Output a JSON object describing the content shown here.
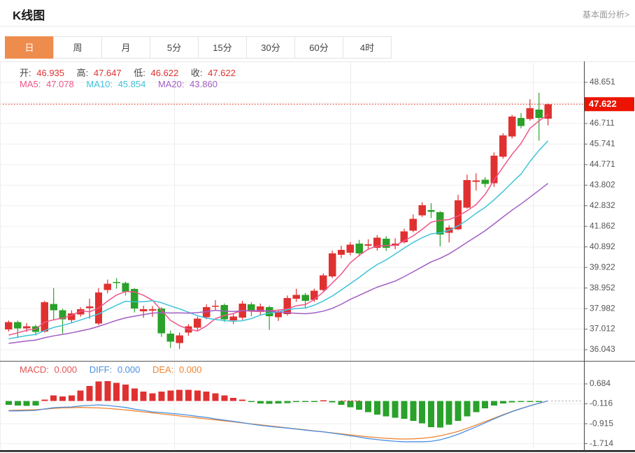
{
  "header": {
    "title": "K线图",
    "link": "基本面分析>"
  },
  "tabs": {
    "items": [
      "日",
      "周",
      "月",
      "5分",
      "15分",
      "30分",
      "60分",
      "4时"
    ],
    "active": "日"
  },
  "ohlc": {
    "open_label": "开:",
    "open": "46.935",
    "high_label": "高:",
    "high": "47.647",
    "low_label": "低:",
    "low": "46.622",
    "close_label": "收:",
    "close": "47.622"
  },
  "ma_readout": {
    "ma5_label": "MA5:",
    "ma5": "47.078",
    "ma10_label": "MA10:",
    "ma10": "45.854",
    "ma20_label": "MA20:",
    "ma20": "43.860"
  },
  "macd_readout": {
    "macd_label": "MACD:",
    "macd": "0.000",
    "diff_label": "DIFF:",
    "diff": "0.000",
    "dea_label": "DEA:",
    "dea": "0.000"
  },
  "colors": {
    "up_red": "#e03131",
    "down_green": "#2aa12a",
    "ma5_pink": "#f0548a",
    "ma10_cyan": "#3fc3da",
    "ma20_purple": "#a25ec4",
    "diff_blue": "#4a90e2",
    "dea_orange": "#ef8430",
    "macd_red_label": "#e05555",
    "accent_orange": "#ee8c4e",
    "badge_red": "#ec1400",
    "grid": "#efefef",
    "axis": "#444444",
    "axis_text": "#555555"
  },
  "chart_data": {
    "type": "candlestick_with_macd",
    "title": "K线图 (daily K-line with MA5/MA10/MA20 and MACD)",
    "legend_position": "top-left overlay",
    "grid": "on",
    "price_axis": {
      "range": [
        36.043,
        48.651
      ],
      "tick_labels": [
        "48.651",
        "46.711",
        "45.741",
        "44.771",
        "43.802",
        "42.832",
        "41.862",
        "40.892",
        "39.922",
        "38.952",
        "37.982",
        "37.012",
        "36.043"
      ],
      "grid_divisions": 13,
      "current_price": 47.622,
      "current_price_label": "47.622"
    },
    "macd_axis": {
      "range": [
        -1.714,
        0.684
      ],
      "tick_labels": [
        "0.684",
        "-0.116",
        "-0.915",
        "-1.714"
      ]
    },
    "vertical_gridlines_x": [
      249,
      501,
      762
    ],
    "ma_periods": [
      5,
      10,
      20
    ],
    "ma_history_closes": [
      35.9,
      35.95,
      36.0,
      36.05,
      36.1,
      36.1,
      36.15,
      36.2,
      36.2,
      36.25,
      36.3,
      36.3,
      36.35,
      36.4,
      36.4,
      36.45,
      36.5,
      36.55,
      36.6,
      36.65
    ],
    "candles_format": [
      "open",
      "high",
      "low",
      "close"
    ],
    "candles": [
      [
        37.0,
        37.42,
        36.9,
        37.35
      ],
      [
        37.35,
        37.42,
        36.6,
        37.05
      ],
      [
        37.05,
        37.3,
        36.88,
        37.15
      ],
      [
        37.15,
        37.22,
        36.72,
        36.88
      ],
      [
        36.9,
        38.35,
        36.85,
        38.28
      ],
      [
        38.2,
        38.95,
        37.45,
        37.9
      ],
      [
        37.9,
        37.98,
        36.8,
        37.48
      ],
      [
        37.45,
        37.9,
        37.3,
        37.75
      ],
      [
        37.7,
        38.05,
        37.6,
        37.95
      ],
      [
        38.0,
        38.45,
        37.5,
        38.08
      ],
      [
        37.28,
        38.95,
        37.2,
        38.75
      ],
      [
        38.85,
        39.35,
        38.7,
        39.15
      ],
      [
        39.24,
        39.42,
        38.92,
        39.18
      ],
      [
        39.18,
        39.25,
        38.6,
        38.78
      ],
      [
        38.9,
        38.95,
        37.8,
        37.98
      ],
      [
        37.85,
        38.12,
        37.55,
        37.95
      ],
      [
        37.88,
        38.1,
        37.6,
        37.96
      ],
      [
        37.98,
        38.05,
        36.65,
        36.82
      ],
      [
        36.8,
        36.95,
        36.12,
        36.42
      ],
      [
        36.35,
        36.85,
        36.08,
        36.72
      ],
      [
        36.85,
        37.25,
        36.7,
        37.15
      ],
      [
        37.08,
        37.6,
        36.95,
        37.5
      ],
      [
        37.58,
        38.18,
        37.48,
        38.05
      ],
      [
        38.08,
        38.38,
        37.9,
        38.12
      ],
      [
        38.15,
        38.22,
        37.35,
        37.48
      ],
      [
        37.42,
        37.75,
        37.25,
        37.6
      ],
      [
        37.55,
        38.35,
        37.45,
        38.22
      ],
      [
        38.18,
        38.28,
        37.62,
        37.85
      ],
      [
        37.82,
        38.22,
        37.7,
        38.08
      ],
      [
        38.05,
        38.12,
        36.98,
        37.62
      ],
      [
        37.58,
        37.92,
        37.4,
        37.78
      ],
      [
        37.72,
        38.6,
        37.65,
        38.48
      ],
      [
        38.45,
        38.92,
        38.3,
        38.62
      ],
      [
        38.62,
        38.72,
        37.98,
        38.35
      ],
      [
        38.4,
        38.92,
        38.3,
        38.82
      ],
      [
        38.85,
        39.65,
        38.8,
        39.55
      ],
      [
        39.5,
        40.72,
        39.42,
        40.58
      ],
      [
        40.52,
        40.95,
        40.35,
        40.75
      ],
      [
        40.62,
        41.12,
        40.5,
        41.0
      ],
      [
        41.05,
        41.22,
        40.45,
        40.58
      ],
      [
        40.95,
        41.25,
        40.75,
        41.02
      ],
      [
        40.85,
        41.45,
        40.72,
        41.32
      ],
      [
        41.28,
        41.4,
        40.7,
        40.85
      ],
      [
        40.95,
        41.3,
        40.78,
        41.05
      ],
      [
        41.12,
        41.75,
        41.05,
        41.62
      ],
      [
        41.65,
        42.42,
        41.58,
        42.22
      ],
      [
        42.38,
        43.0,
        42.3,
        42.85
      ],
      [
        42.62,
        42.95,
        42.25,
        42.55
      ],
      [
        42.52,
        42.58,
        40.92,
        41.48
      ],
      [
        41.55,
        41.92,
        41.1,
        41.8
      ],
      [
        41.72,
        43.35,
        41.68,
        43.08
      ],
      [
        42.75,
        44.3,
        42.7,
        44.05
      ],
      [
        44.0,
        44.36,
        43.55,
        44.02
      ],
      [
        44.06,
        44.18,
        43.7,
        43.86
      ],
      [
        43.9,
        45.35,
        43.72,
        45.2
      ],
      [
        45.15,
        46.25,
        45.05,
        46.15
      ],
      [
        46.1,
        47.12,
        46.0,
        47.04
      ],
      [
        46.97,
        47.2,
        46.48,
        46.6
      ],
      [
        46.93,
        47.86,
        46.85,
        47.43
      ],
      [
        47.37,
        48.16,
        45.9,
        46.97
      ],
      [
        46.935,
        47.647,
        46.622,
        47.622
      ]
    ],
    "macd": {
      "hist": [
        -0.15,
        -0.18,
        -0.2,
        -0.18,
        0.05,
        0.22,
        0.18,
        0.22,
        0.42,
        0.6,
        0.78,
        0.8,
        0.72,
        0.65,
        0.5,
        0.38,
        0.3,
        0.38,
        0.42,
        0.45,
        0.45,
        0.42,
        0.38,
        0.3,
        0.22,
        0.12,
        0.06,
        -0.04,
        -0.1,
        -0.12,
        -0.1,
        -0.08,
        -0.05,
        -0.04,
        -0.03,
        0.02,
        -0.06,
        -0.15,
        -0.25,
        -0.35,
        -0.45,
        -0.55,
        -0.62,
        -0.68,
        -0.72,
        -0.8,
        -0.9,
        -1.05,
        -1.06,
        -0.95,
        -0.8,
        -0.62,
        -0.45,
        -0.3,
        -0.18,
        -0.1,
        -0.06,
        -0.04,
        -0.03,
        -0.02,
        0.0
      ],
      "diff": [
        -0.4,
        -0.4,
        -0.39,
        -0.38,
        -0.32,
        -0.27,
        -0.25,
        -0.24,
        -0.2,
        -0.18,
        -0.16,
        -0.18,
        -0.22,
        -0.26,
        -0.33,
        -0.38,
        -0.44,
        -0.46,
        -0.5,
        -0.53,
        -0.57,
        -0.62,
        -0.66,
        -0.72,
        -0.77,
        -0.82,
        -0.87,
        -0.93,
        -0.98,
        -1.02,
        -1.06,
        -1.09,
        -1.13,
        -1.17,
        -1.21,
        -1.24,
        -1.29,
        -1.34,
        -1.4,
        -1.45,
        -1.51,
        -1.55,
        -1.59,
        -1.62,
        -1.64,
        -1.64,
        -1.64,
        -1.62,
        -1.56,
        -1.46,
        -1.34,
        -1.19,
        -1.04,
        -0.88,
        -0.72,
        -0.57,
        -0.43,
        -0.31,
        -0.2,
        -0.09,
        0.0
      ],
      "dea": [
        -0.38,
        -0.37,
        -0.36,
        -0.35,
        -0.33,
        -0.3,
        -0.28,
        -0.27,
        -0.26,
        -0.27,
        -0.28,
        -0.3,
        -0.33,
        -0.36,
        -0.4,
        -0.44,
        -0.48,
        -0.52,
        -0.56,
        -0.6,
        -0.64,
        -0.68,
        -0.72,
        -0.76,
        -0.8,
        -0.84,
        -0.88,
        -0.92,
        -0.96,
        -1.0,
        -1.04,
        -1.08,
        -1.12,
        -1.16,
        -1.2,
        -1.24,
        -1.28,
        -1.32,
        -1.36,
        -1.4,
        -1.44,
        -1.47,
        -1.5,
        -1.52,
        -1.53,
        -1.52,
        -1.5,
        -1.46,
        -1.4,
        -1.32,
        -1.22,
        -1.1,
        -0.97,
        -0.83,
        -0.69,
        -0.55,
        -0.42,
        -0.3,
        -0.19,
        -0.09,
        0.0
      ]
    }
  }
}
